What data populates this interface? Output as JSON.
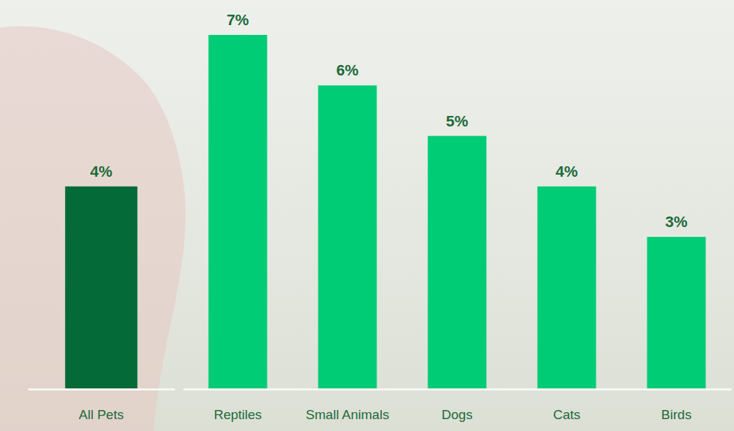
{
  "chart_data": {
    "type": "bar",
    "categories": [
      "All Pets",
      "Reptiles",
      "Small Animals",
      "Dogs",
      "Cats",
      "Birds"
    ],
    "values": [
      4,
      7,
      6,
      5,
      4,
      3
    ],
    "value_labels": [
      "4%",
      "7%",
      "6%",
      "5%",
      "4%",
      "3%"
    ],
    "colors": [
      "#046a38",
      "#00cc76",
      "#00cc76",
      "#00cc76",
      "#00cc76",
      "#00cc76"
    ],
    "ylim": [
      0,
      7
    ],
    "data_labels": true,
    "tick_labels": "x",
    "grid": false
  }
}
